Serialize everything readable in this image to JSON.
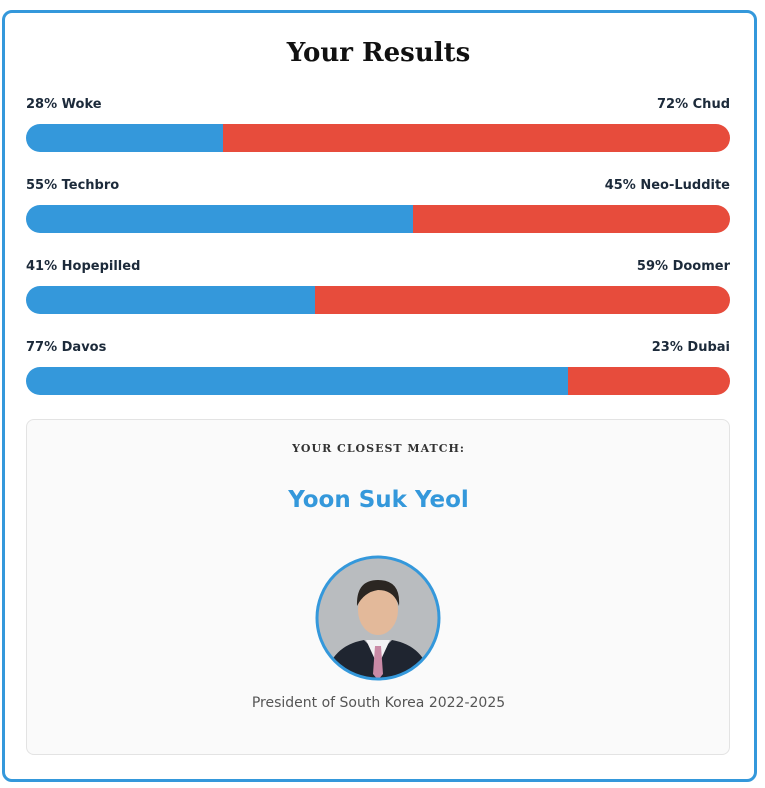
{
  "header": {
    "title": "Your Results"
  },
  "axes": [
    {
      "left": {
        "label": "28% Woke",
        "value": 28,
        "color": "#3498db"
      },
      "right": {
        "label": "72% Chud",
        "value": 72,
        "color": "#e74c3c"
      }
    },
    {
      "left": {
        "label": "55% Techbro",
        "value": 55,
        "color": "#3498db"
      },
      "right": {
        "label": "45% Neo-Luddite",
        "value": 45,
        "color": "#e74c3c"
      }
    },
    {
      "left": {
        "label": "41% Hopepilled",
        "value": 41,
        "color": "#3498db"
      },
      "right": {
        "label": "59% Doomer",
        "value": 59,
        "color": "#e74c3c"
      }
    },
    {
      "left": {
        "label": "77% Davos",
        "value": 77,
        "color": "#3498db"
      },
      "right": {
        "label": "23% Dubai",
        "value": 23,
        "color": "#e74c3c"
      }
    }
  ],
  "match": {
    "heading": "YOUR CLOSEST MATCH:",
    "name": "Yoon Suk Yeol",
    "description": "President of South Korea 2022-2025"
  }
}
